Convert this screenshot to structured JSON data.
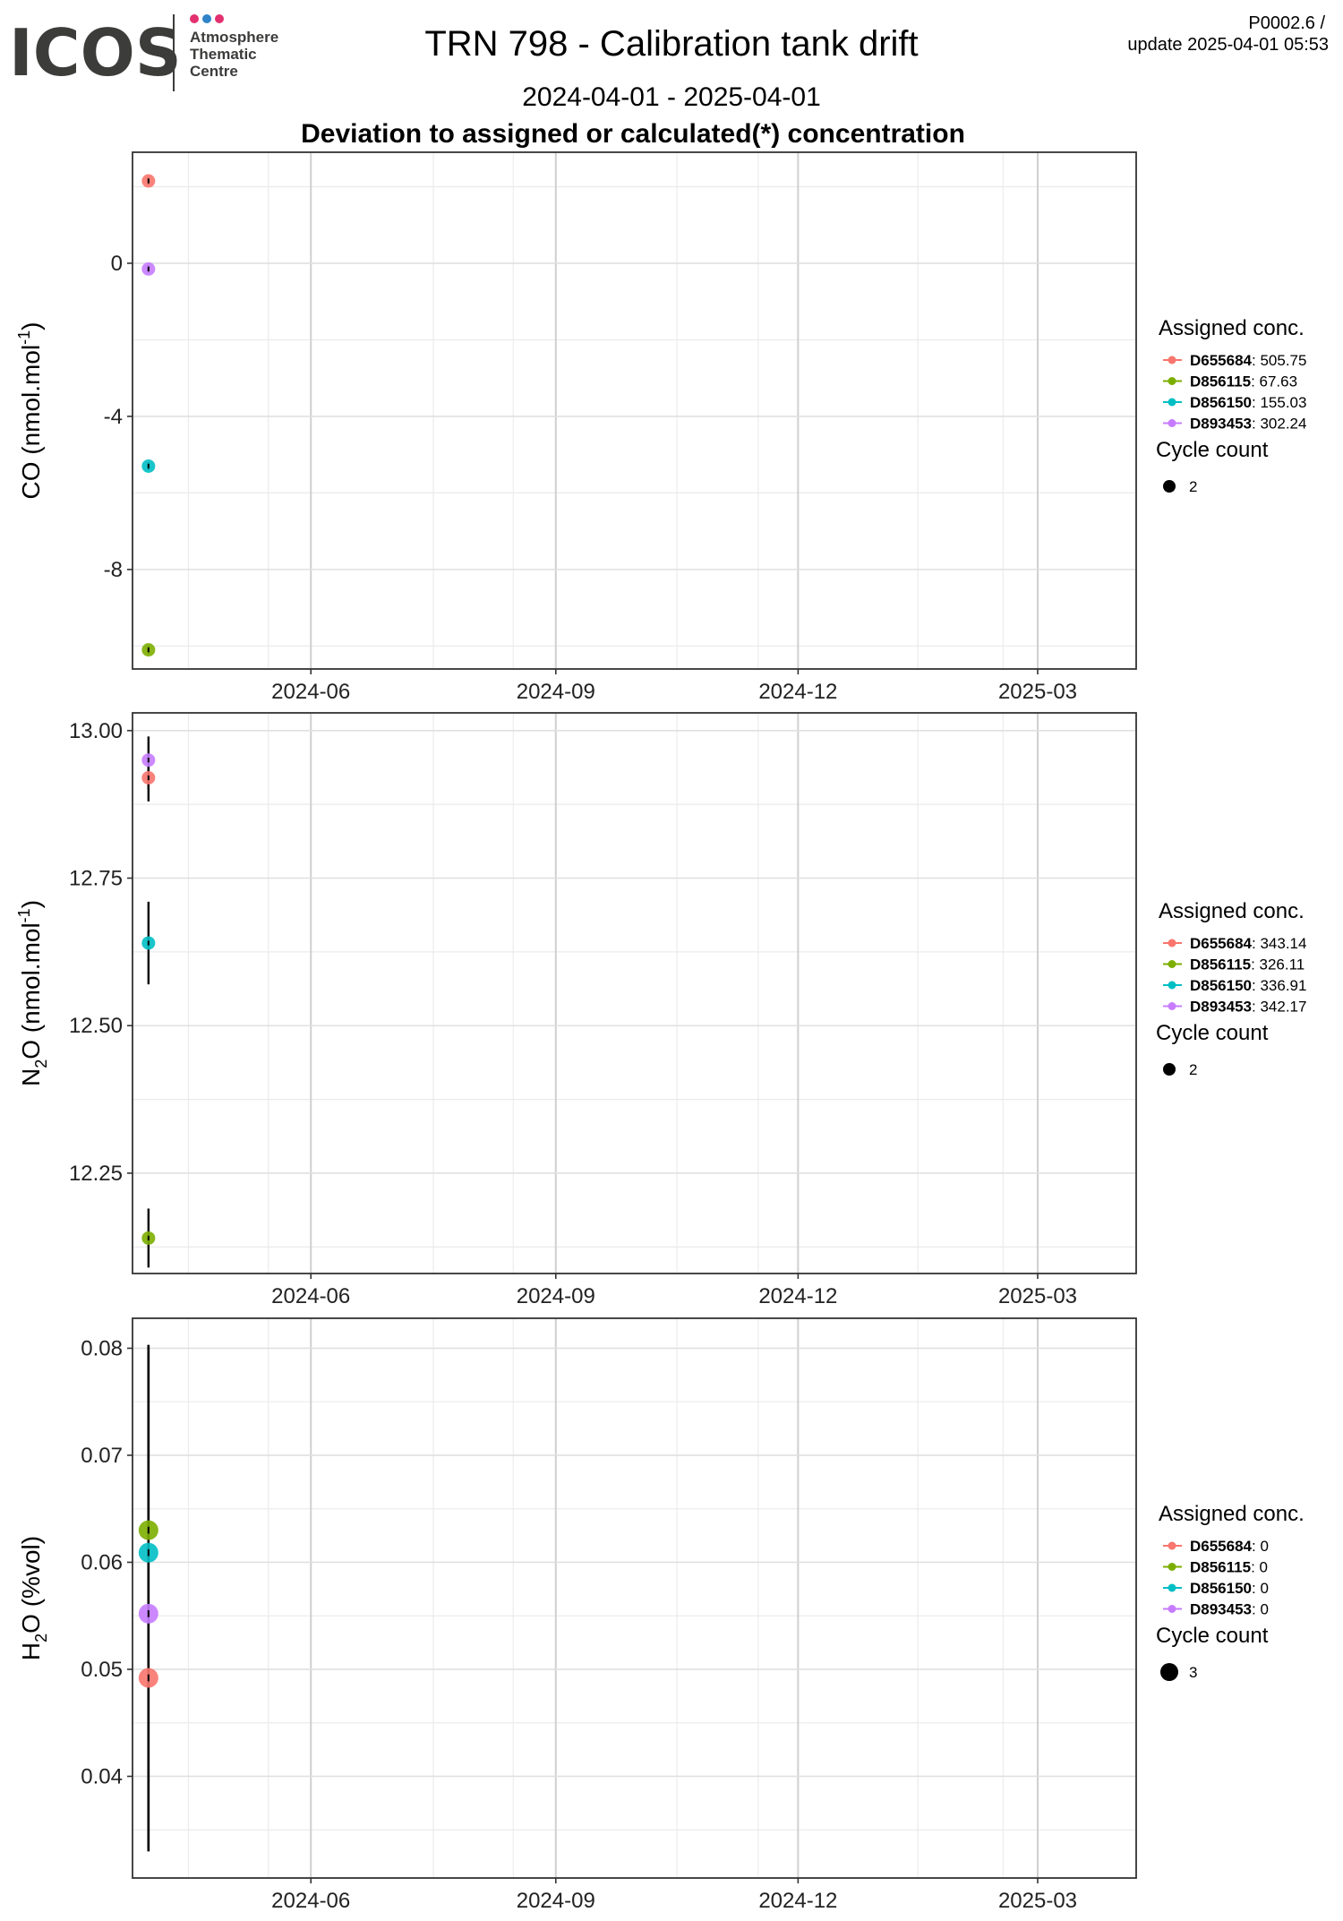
{
  "header": {
    "logo": {
      "wordmark": "ICOS",
      "line1": "Atmosphere",
      "line2": "Thematic",
      "line3": "Centre",
      "dot_colors": [
        "#e3306f",
        "#2f83c8",
        "#e3306f"
      ]
    },
    "title": "TRN 798 - Calibration tank drift",
    "date_range": "2024-04-01 - 2025-04-01",
    "subtitle": "Deviation to assigned or calculated(*) concentration",
    "version": "P0002.6 /",
    "update": "update  2025-04-01 05:53"
  },
  "series_colors": {
    "D655684": "#f8766d",
    "D856115": "#7cae00",
    "D856150": "#00bfc4",
    "D893453": "#c77cff"
  },
  "chart_data": [
    {
      "type": "scatter",
      "ylabel_main": "CO (nmol.mol",
      "ylabel_sup": "-1",
      "ylabel_tail": ")",
      "x_ticks": [
        "2024-06",
        "2024-09",
        "2024-12",
        "2025-03"
      ],
      "xlim": [
        "2024-03-26",
        "2025-04-07"
      ],
      "ylim": [
        -10.6,
        2.9
      ],
      "y_ticks": [
        0,
        -4,
        -8
      ],
      "y_tick_labels": [
        "0",
        "-4",
        "-8"
      ],
      "legend_title": "Assigned conc.",
      "legend_entries": [
        {
          "id": "D655684",
          "value": ": 505.75"
        },
        {
          "id": "D856115",
          "value": ": 67.63"
        },
        {
          "id": "D856150",
          "value": ": 155.03"
        },
        {
          "id": "D893453",
          "value": ": 302.24"
        }
      ],
      "size_legend_title": "Cycle count",
      "size_legend_value": "2",
      "points": [
        {
          "series": "D655684",
          "x": "2024-04-01",
          "y": 2.15,
          "ymin": 2.05,
          "ymax": 2.25,
          "cycles": 2
        },
        {
          "series": "D893453",
          "x": "2024-04-01",
          "y": -0.15,
          "ymin": -0.25,
          "ymax": -0.05,
          "cycles": 2
        },
        {
          "series": "D856150",
          "x": "2024-04-01",
          "y": -5.3,
          "ymin": -5.4,
          "ymax": -5.2,
          "cycles": 2
        },
        {
          "series": "D856115",
          "x": "2024-04-01",
          "y": -10.1,
          "ymin": -10.2,
          "ymax": -10.0,
          "cycles": 2
        }
      ]
    },
    {
      "type": "scatter",
      "ylabel_pre": "N",
      "ylabel_sub": "2",
      "ylabel_main": "O (nmol.mol",
      "ylabel_sup": "-1",
      "ylabel_tail": ")",
      "x_ticks": [
        "2024-06",
        "2024-09",
        "2024-12",
        "2025-03"
      ],
      "xlim": [
        "2024-03-26",
        "2025-04-07"
      ],
      "ylim": [
        12.08,
        13.03
      ],
      "y_ticks": [
        13.0,
        12.75,
        12.5,
        12.25
      ],
      "y_tick_labels": [
        "13.00",
        "12.75",
        "12.50",
        "12.25"
      ],
      "legend_title": "Assigned conc.",
      "legend_entries": [
        {
          "id": "D655684",
          "value": ": 343.14"
        },
        {
          "id": "D856115",
          "value": ": 326.11"
        },
        {
          "id": "D856150",
          "value": ": 336.91"
        },
        {
          "id": "D893453",
          "value": ": 342.17"
        }
      ],
      "size_legend_title": "Cycle count",
      "size_legend_value": "2",
      "points": [
        {
          "series": "D893453",
          "x": "2024-04-01",
          "y": 12.95,
          "ymin": 12.9,
          "ymax": 12.99,
          "cycles": 2
        },
        {
          "series": "D655684",
          "x": "2024-04-01",
          "y": 12.92,
          "ymin": 12.88,
          "ymax": 12.96,
          "cycles": 2
        },
        {
          "series": "D856150",
          "x": "2024-04-01",
          "y": 12.64,
          "ymin": 12.57,
          "ymax": 12.71,
          "cycles": 2
        },
        {
          "series": "D856115",
          "x": "2024-04-01",
          "y": 12.14,
          "ymin": 12.09,
          "ymax": 12.19,
          "cycles": 2
        }
      ]
    },
    {
      "type": "scatter",
      "ylabel_pre": "H",
      "ylabel_sub": "2",
      "ylabel_main": "O (%vol)",
      "x_ticks": [
        "2024-06",
        "2024-09",
        "2024-12",
        "2025-03"
      ],
      "xlim": [
        "2024-03-26",
        "2025-04-07"
      ],
      "ylim": [
        0.0305,
        0.0828
      ],
      "y_ticks": [
        0.08,
        0.07,
        0.06,
        0.05,
        0.04
      ],
      "y_tick_labels": [
        "0.08",
        "0.07",
        "0.06",
        "0.05",
        "0.04"
      ],
      "legend_title": "Assigned conc.",
      "legend_entries": [
        {
          "id": "D655684",
          "value": ": 0"
        },
        {
          "id": "D856115",
          "value": ": 0"
        },
        {
          "id": "D856150",
          "value": ": 0"
        },
        {
          "id": "D893453",
          "value": ": 0"
        }
      ],
      "size_legend_title": "Cycle count",
      "size_legend_value": "3",
      "points": [
        {
          "series": "D856115",
          "x": "2024-04-01",
          "y": 0.063,
          "ymin": 0.033,
          "ymax": 0.0803,
          "cycles": 3
        },
        {
          "series": "D856150",
          "x": "2024-04-01",
          "y": 0.0609,
          "ymin": 0.033,
          "ymax": 0.0803,
          "cycles": 3
        },
        {
          "series": "D893453",
          "x": "2024-04-01",
          "y": 0.0552,
          "ymin": 0.033,
          "ymax": 0.0803,
          "cycles": 3
        },
        {
          "series": "D655684",
          "x": "2024-04-01",
          "y": 0.0492,
          "ymin": 0.033,
          "ymax": 0.0803,
          "cycles": 3
        }
      ]
    }
  ]
}
